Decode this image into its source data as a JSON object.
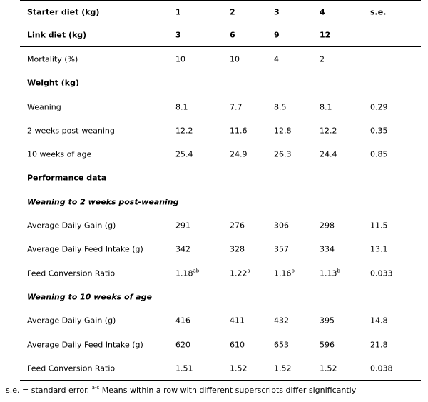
{
  "header": {
    "starter_label": "Starter diet (kg)",
    "starter_values": [
      "1",
      "2",
      "3",
      "4"
    ],
    "se_label": "s.e.",
    "link_label": "Link diet (kg)",
    "link_values": [
      "3",
      "6",
      "9",
      "12"
    ]
  },
  "mortality": {
    "label": "Mortality (%)",
    "values": [
      "10",
      "10",
      "4",
      "2"
    ]
  },
  "weight": {
    "heading": "Weight (kg)",
    "rows": [
      {
        "label": "Weaning",
        "values": [
          "8.1",
          "7.7",
          "8.5",
          "8.1"
        ],
        "se": "0.29"
      },
      {
        "label": "2 weeks post-weaning",
        "values": [
          "12.2",
          "11.6",
          "12.8",
          "12.2"
        ],
        "se": "0.35"
      },
      {
        "label": "10 weeks of age",
        "values": [
          "25.4",
          "24.9",
          "26.3",
          "24.4"
        ],
        "se": "0.85"
      }
    ]
  },
  "performance": {
    "heading": "Performance data",
    "period1": {
      "heading": "Weaning to 2 weeks post-weaning",
      "adg": {
        "label": "Average Daily Gain (g)",
        "values": [
          "291",
          "276",
          "306",
          "298"
        ],
        "se": "11.5"
      },
      "adfi": {
        "label": "Average Daily Feed Intake (g)",
        "values": [
          "342",
          "328",
          "357",
          "334"
        ],
        "se": "13.1"
      },
      "fcr": {
        "label": "Feed Conversion Ratio",
        "values": [
          "1.18",
          "1.22",
          "1.16",
          "1.13"
        ],
        "sups": [
          "ab",
          "a",
          "b",
          "b"
        ],
        "se": "0.033"
      }
    },
    "period2": {
      "heading": "Weaning to 10 weeks of age",
      "adg": {
        "label": "Average Daily Gain (g)",
        "values": [
          "416",
          "411",
          "432",
          "395"
        ],
        "se": "14.8"
      },
      "adfi": {
        "label": "Average Daily Feed Intake (g)",
        "values": [
          "620",
          "610",
          "653",
          "596"
        ],
        "se": "21.8"
      },
      "fcr": {
        "label": "Feed Conversion Ratio",
        "values": [
          "1.51",
          "1.52",
          "1.52",
          "1.52"
        ],
        "se": "0.038"
      }
    }
  },
  "footnote": {
    "text_before": "s.e. = standard error. ",
    "sup": "a-c",
    "text_after": " Means within a row with different superscripts differ significantly"
  }
}
